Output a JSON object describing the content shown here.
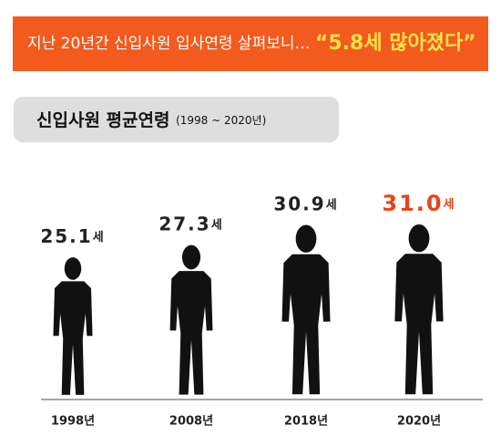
{
  "chart_data": {
    "type": "pictogram",
    "title": "지난 20년간 신입사원 입사연령 살펴보니…",
    "title_highlight": "“5.8세 많아졌다”",
    "subtitle": "신입사원 평균연령",
    "subtitle_note": "(1998 ~ 2020년)",
    "categories": [
      "1998년",
      "2008년",
      "2018년",
      "2020년"
    ],
    "values": [
      25.1,
      27.3,
      30.9,
      31.0
    ],
    "value_labels": [
      "25.1세",
      "27.3세",
      "30.9세",
      "31.0세"
    ],
    "color": "#111111",
    "label_colors": [
      "#222222",
      "#222222",
      "#222222",
      "#e8431a"
    ]
  }
}
